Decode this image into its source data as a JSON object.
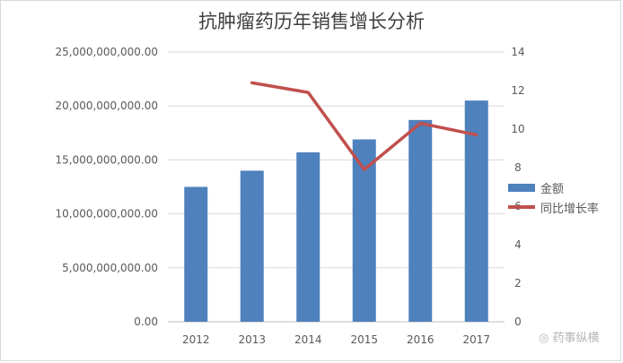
{
  "chart_data": {
    "type": "bar",
    "title": "抗肿瘤药历年销售增长分析",
    "categories": [
      "2012",
      "2013",
      "2014",
      "2015",
      "2016",
      "2017"
    ],
    "series": [
      {
        "name": "金额",
        "type": "bar",
        "axis": "left",
        "color": "#4f81bd",
        "values": [
          12500000000,
          14000000000,
          15700000000,
          16900000000,
          18700000000,
          20500000000
        ]
      },
      {
        "name": "同比增长率",
        "type": "line",
        "axis": "right",
        "color": "#c0504d",
        "values": [
          null,
          12.4,
          11.9,
          7.9,
          10.3,
          9.7
        ]
      }
    ],
    "y_left": {
      "ylim": [
        0,
        25000000000
      ],
      "ticks": [
        "0.00",
        "5,000,000,000.00",
        "10,000,000,000.00",
        "15,000,000,000.00",
        "20,000,000,000.00",
        "25,000,000,000.00"
      ]
    },
    "y_right": {
      "ylim": [
        0,
        14
      ],
      "ticks": [
        "0",
        "2",
        "4",
        "6",
        "8",
        "10",
        "12",
        "14"
      ]
    },
    "grid": true,
    "legend": "right"
  },
  "watermark": "药事纵横"
}
